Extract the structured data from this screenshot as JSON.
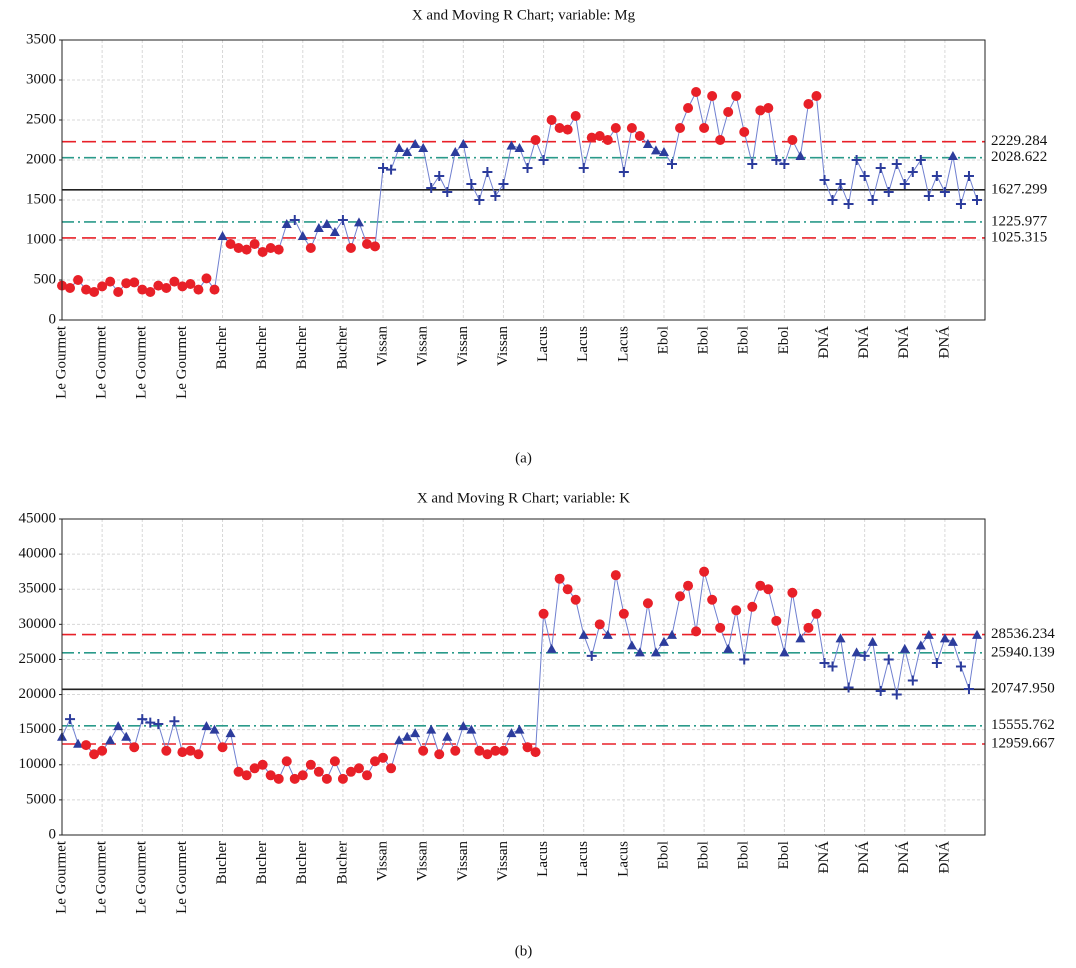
{
  "chart_data": [
    {
      "type": "control",
      "title": "X and Moving R Chart; variable: Mg",
      "caption": "(a)",
      "categories": [
        "Le Gourmet",
        null,
        null,
        null,
        null,
        "Le Gourmet",
        null,
        null,
        null,
        null,
        "Le Gourmet",
        null,
        null,
        null,
        null,
        "Le Gourmet",
        null,
        null,
        null,
        null,
        "Bucher",
        null,
        null,
        null,
        null,
        "Bucher",
        null,
        null,
        null,
        null,
        "Bucher",
        null,
        null,
        null,
        null,
        "Bucher",
        null,
        null,
        null,
        null,
        "Vissan",
        null,
        null,
        null,
        null,
        "Vissan",
        null,
        null,
        null,
        null,
        "Vissan",
        null,
        null,
        null,
        null,
        "Vissan",
        null,
        null,
        null,
        null,
        "Lacus",
        null,
        null,
        null,
        null,
        "Lacus",
        null,
        null,
        null,
        null,
        "Lacus",
        null,
        null,
        null,
        null,
        "Ebol",
        null,
        null,
        null,
        null,
        "Ebol",
        null,
        null,
        null,
        null,
        "Ebol",
        null,
        null,
        null,
        null,
        "Ebol",
        null,
        null,
        null,
        null,
        "ĐNÁ",
        null,
        null,
        null,
        null,
        "ĐNÁ",
        null,
        null,
        null,
        null,
        "ĐNÁ",
        null,
        null,
        null,
        null,
        "ĐNÁ",
        null,
        null,
        null,
        null
      ],
      "values": [
        430,
        400,
        500,
        380,
        350,
        420,
        480,
        350,
        460,
        470,
        380,
        350,
        430,
        400,
        480,
        420,
        450,
        380,
        520,
        380,
        1050,
        950,
        900,
        880,
        950,
        850,
        900,
        880,
        1200,
        1250,
        1050,
        900,
        1150,
        1200,
        1100,
        1250,
        900,
        1220,
        950,
        920,
        1900,
        1880,
        2150,
        2100,
        2200,
        2150,
        1650,
        1800,
        1600,
        2100,
        2200,
        1700,
        1500,
        1850,
        1550,
        1700,
        2180,
        2150,
        1900,
        2250,
        2000,
        2500,
        2400,
        2380,
        2550,
        1900,
        2280,
        2300,
        2250,
        2400,
        1850,
        2400,
        2300,
        2200,
        2120,
        2100,
        1950,
        2400,
        2650,
        2850,
        2400,
        2800,
        2250,
        2600,
        2800,
        2350,
        1950,
        2620,
        2650,
        2000,
        1950,
        2250,
        2050,
        2700,
        2800,
        1750,
        1500,
        1700,
        1450,
        2000,
        1800,
        1500,
        1900,
        1600,
        1950,
        1700,
        1850,
        2000,
        1550,
        1800,
        1600,
        2050,
        1450,
        1800,
        1500
      ],
      "ylim": [
        0,
        3500
      ],
      "yticks": [
        0,
        500,
        1000,
        1500,
        2000,
        2500,
        3000,
        3500
      ],
      "grid": true,
      "line_color": "#7080d0",
      "marker_color": "#2c3c9c",
      "alarm_color": "#e82028",
      "limits": [
        {
          "value": 2229.284,
          "color": "#e82028",
          "dash": "dashed"
        },
        {
          "value": 2028.622,
          "color": "#2a9a8a",
          "dash": "dashdot"
        },
        {
          "value": 1627.299,
          "color": "#222222",
          "dash": "solid"
        },
        {
          "value": 1225.977,
          "color": "#2a9a8a",
          "dash": "dashdot"
        },
        {
          "value": 1025.315,
          "color": "#e82028",
          "dash": "dashed"
        }
      ]
    },
    {
      "type": "control",
      "title": "X and Moving R Chart; variable: K",
      "caption": "(b)",
      "categories": [
        "Le Gourmet",
        null,
        null,
        null,
        null,
        "Le Gourmet",
        null,
        null,
        null,
        null,
        "Le Gourmet",
        null,
        null,
        null,
        null,
        "Le Gourmet",
        null,
        null,
        null,
        null,
        "Bucher",
        null,
        null,
        null,
        null,
        "Bucher",
        null,
        null,
        null,
        null,
        "Bucher",
        null,
        null,
        null,
        null,
        "Bucher",
        null,
        null,
        null,
        null,
        "Vissan",
        null,
        null,
        null,
        null,
        "Vissan",
        null,
        null,
        null,
        null,
        "Vissan",
        null,
        null,
        null,
        null,
        "Vissan",
        null,
        null,
        null,
        null,
        "Lacus",
        null,
        null,
        null,
        null,
        "Lacus",
        null,
        null,
        null,
        null,
        "Lacus",
        null,
        null,
        null,
        null,
        "Ebol",
        null,
        null,
        null,
        null,
        "Ebol",
        null,
        null,
        null,
        null,
        "Ebol",
        null,
        null,
        null,
        null,
        "Ebol",
        null,
        null,
        null,
        null,
        "ĐNÁ",
        null,
        null,
        null,
        null,
        "ĐNÁ",
        null,
        null,
        null,
        null,
        "ĐNÁ",
        null,
        null,
        null,
        null,
        "ĐNÁ",
        null,
        null,
        null,
        null
      ],
      "values": [
        14000,
        16500,
        13000,
        12800,
        11500,
        12000,
        13500,
        15500,
        14000,
        12500,
        16500,
        16000,
        15800,
        12000,
        16200,
        11800,
        12000,
        11500,
        15500,
        15000,
        12500,
        14500,
        9000,
        8500,
        9500,
        10000,
        8500,
        8000,
        10500,
        8000,
        8500,
        10000,
        9000,
        8000,
        10500,
        8000,
        9000,
        9500,
        8500,
        10500,
        11000,
        9500,
        13500,
        14000,
        14500,
        12000,
        15000,
        11500,
        14000,
        12000,
        15500,
        15000,
        12000,
        11500,
        12000,
        12000,
        14500,
        15000,
        12500,
        11800,
        31500,
        26500,
        36500,
        35000,
        33500,
        28500,
        25500,
        30000,
        28500,
        37000,
        31500,
        27000,
        26000,
        33000,
        26000,
        27500,
        28500,
        34000,
        35500,
        29000,
        37500,
        33500,
        29500,
        26500,
        32000,
        25000,
        32500,
        35500,
        35000,
        30500,
        26000,
        34500,
        28000,
        29500,
        31500,
        24500,
        24000,
        28000,
        21000,
        26000,
        25500,
        27500,
        20500,
        25000,
        20000,
        26500,
        22000,
        27000,
        28500,
        24500,
        28000,
        27500,
        24000,
        20800,
        28500
      ],
      "ylim": [
        0,
        45000
      ],
      "yticks": [
        0,
        5000,
        10000,
        15000,
        20000,
        25000,
        30000,
        35000,
        40000,
        45000
      ],
      "grid": true,
      "line_color": "#7080d0",
      "marker_color": "#2c3c9c",
      "alarm_color": "#e82028",
      "limits": [
        {
          "value": 28536.234,
          "color": "#e82028",
          "dash": "dashed"
        },
        {
          "value": 25940.139,
          "color": "#2a9a8a",
          "dash": "dashdot"
        },
        {
          "value": 20747.95,
          "label": "20747.950",
          "color": "#222222",
          "dash": "solid"
        },
        {
          "value": 15555.762,
          "color": "#2a9a8a",
          "dash": "dashdot"
        },
        {
          "value": 12959.667,
          "color": "#e82028",
          "dash": "dashed"
        }
      ]
    }
  ]
}
